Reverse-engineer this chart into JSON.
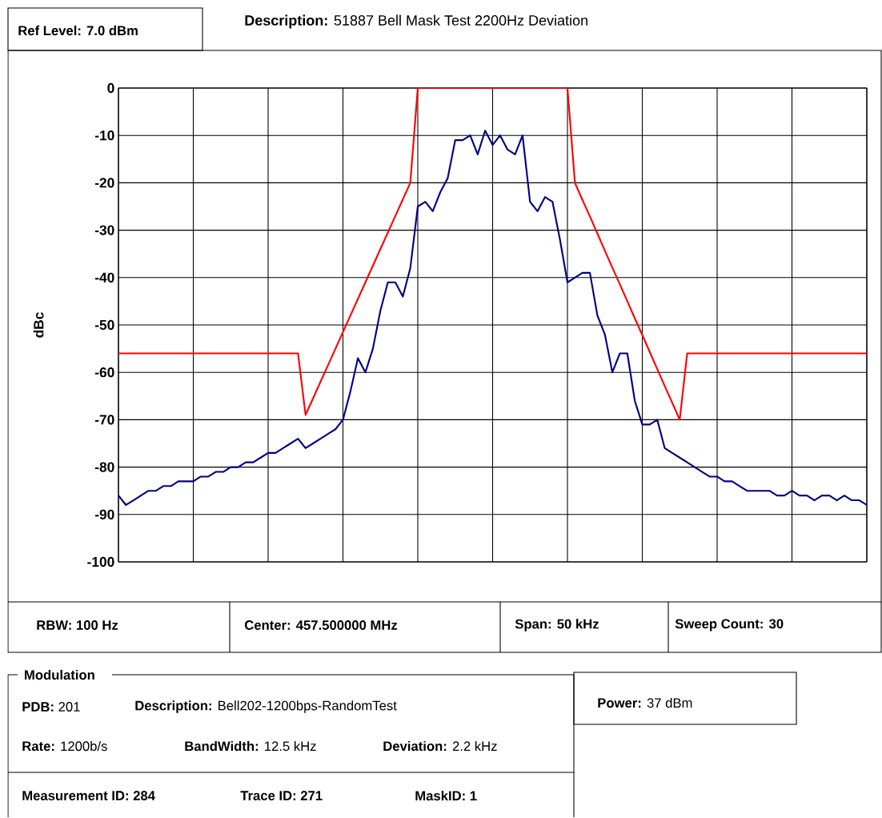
{
  "chart_data": {
    "type": "line",
    "title": "**Description:** 51887 Bell Mask Test 2200Hz Deviation",
    "ylabel": "dBc",
    "categories": [
      null,
      null,
      null,
      null,
      null,
      null,
      null,
      null,
      null,
      null,
      null,
      null,
      null,
      null,
      null,
      null,
      null,
      null,
      null,
      null,
      null,
      null,
      null,
      null,
      null,
      null,
      null,
      null,
      null,
      null,
      null,
      null,
      null,
      null,
      null,
      null,
      null,
      null,
      null,
      null,
      null,
      null,
      null,
      null,
      null,
      null,
      null,
      null,
      null,
      null,
      null,
      null,
      null,
      null,
      null,
      null,
      null,
      null,
      null,
      null,
      null,
      null,
      null,
      null,
      null,
      null,
      null,
      null,
      null,
      null,
      null,
      null,
      null,
      null,
      null,
      null,
      null,
      null,
      null,
      null,
      null,
      null,
      null,
      null,
      null,
      null,
      null,
      null,
      null,
      null,
      null,
      null,
      null,
      null,
      null,
      null,
      null,
      null,
      null,
      null,
      null
    ],
    "ylim": [
      -100,
      0
    ],
    "yticks": [
      0,
      -10,
      -20,
      -30,
      -40,
      -50,
      -60,
      -70,
      -80,
      -90,
      -100
    ],
    "tick_labels": "y",
    "grid": true,
    "series": [
      {
        "color": "#000080",
        "values": [
          -86,
          -88,
          -87,
          -86,
          -85,
          -85,
          -84,
          -84,
          -83,
          -83,
          -83,
          -82,
          -82,
          -81,
          -81,
          -80,
          -80,
          -79,
          -79,
          -78,
          -77,
          -77,
          -76,
          -75,
          -74,
          -76,
          -75,
          -74,
          -73,
          -72,
          -70,
          -64,
          -57,
          -60,
          -55,
          -47,
          -41,
          -41,
          -44,
          -38,
          -25,
          -24,
          -26,
          -22,
          -19,
          -11,
          -11,
          -10,
          -14,
          -9,
          -12,
          -10,
          -13,
          -14,
          -10,
          -24,
          -26,
          -23,
          -24,
          -32,
          -41,
          -40,
          -39,
          -39,
          -48,
          -52,
          -60,
          -56,
          -56,
          -66,
          -71,
          -71,
          -70,
          -76,
          -77,
          -78,
          -79,
          -80,
          -81,
          -82,
          -82,
          -83,
          -83,
          -84,
          -85,
          -85,
          -85,
          -85,
          -86,
          -86,
          -85,
          -86,
          -86,
          -87,
          -86,
          -86,
          -87,
          -86,
          -87,
          -87,
          -88
        ]
      },
      {
        "color": "#ff0000",
        "values": [
          -56,
          -56,
          -56,
          -56,
          -56,
          -56,
          -56,
          -56,
          -56,
          -56,
          -56,
          -56,
          -56,
          -56,
          -56,
          -56,
          -56,
          -56,
          -56,
          -56,
          -56,
          -56,
          -56,
          -56,
          -56,
          -69,
          -65.5,
          -62,
          -58.5,
          -55,
          -51.5,
          -48,
          -44.5,
          -41,
          -37.5,
          -34,
          -30.5,
          -27,
          -23.5,
          -20,
          0,
          0,
          0,
          0,
          0,
          0,
          0,
          0,
          0,
          0,
          0,
          0,
          0,
          0,
          0,
          0,
          0,
          0,
          0,
          0,
          0,
          -20,
          -23.6,
          -27.1,
          -30.7,
          -34.3,
          -37.9,
          -41.4,
          -45,
          -48.6,
          -52.1,
          -55.7,
          -59.3,
          -62.9,
          -66.4,
          -70,
          -56,
          -56,
          -56,
          -56,
          -56,
          -56,
          -56,
          -56,
          -56,
          -56,
          -56,
          -56,
          -56,
          -56,
          -56,
          -56,
          -56,
          -56,
          -56,
          -56,
          -56,
          -56,
          -56,
          -56,
          -56
        ]
      }
    ],
    "annotations": [
      "Ref Level:  7.0 dBm",
      "RBW:  100 Hz",
      "Center:  457.500000 MHz",
      "Span:  50 kHz",
      "Sweep Count:  30",
      "Modulation",
      "**PDB:** 201",
      "**Description:** Bell202-1200bps-RandomTest",
      "**Rate:** 1200b/s",
      "**BandWidth:** 12.5 kHz",
      "**Deviation:** 2.2 kHz",
      "Measurement ID:  284",
      "Trace ID:  271",
      "MaskID:  1",
      "**Power:** 37 dBm"
    ]
  }
}
